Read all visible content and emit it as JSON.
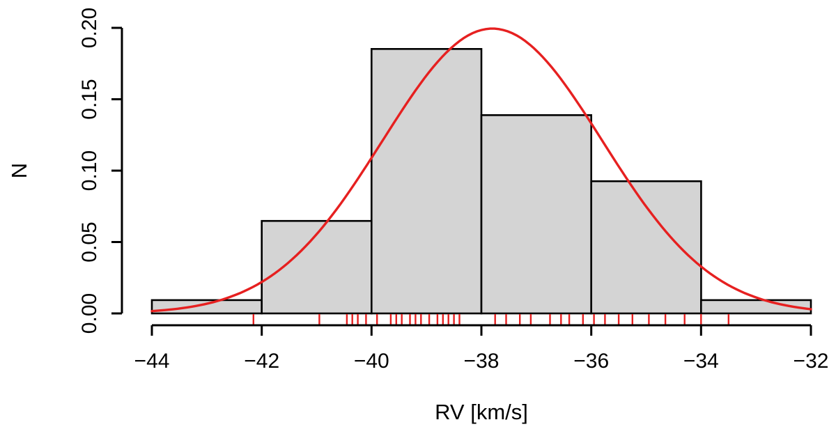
{
  "chart_data": {
    "type": "bar",
    "subtype": "histogram-with-density-curve-and-rug",
    "title": "",
    "xlabel": "RV [km/s]",
    "ylabel": "N",
    "xlim": [
      -44,
      -32
    ],
    "ylim": [
      0,
      0.2
    ],
    "grid": false,
    "legend": null,
    "x_ticks": [
      -44,
      -42,
      -40,
      -38,
      -36,
      -34,
      -32
    ],
    "x_tick_labels": [
      "−44",
      "−42",
      "−40",
      "−38",
      "−36",
      "−34",
      "−32"
    ],
    "y_ticks": [
      0,
      0.05,
      0.1,
      0.15,
      0.2
    ],
    "y_tick_labels": [
      "0.00",
      "0.05",
      "0.10",
      "0.15",
      "0.20"
    ],
    "bins": {
      "edges": [
        -44,
        -42,
        -40,
        -38,
        -36,
        -34,
        -32
      ],
      "densities": [
        0.0093,
        0.0648,
        0.1852,
        0.1389,
        0.0926,
        0.0093
      ]
    },
    "normal_curve": {
      "mean": -37.8,
      "sd": 2.0,
      "peak_density": 0.1995
    },
    "rug_values": [
      -42.15,
      -40.95,
      -40.45,
      -40.35,
      -40.25,
      -40.1,
      -39.9,
      -39.65,
      -39.55,
      -39.45,
      -39.3,
      -39.2,
      -39.1,
      -38.95,
      -38.8,
      -38.7,
      -38.6,
      -38.5,
      -38.4,
      -37.75,
      -37.55,
      -37.3,
      -37.1,
      -36.75,
      -36.55,
      -36.4,
      -36.15,
      -35.95,
      -35.75,
      -35.5,
      -35.25,
      -34.95,
      -34.65,
      -34.3,
      -34.0,
      -33.5
    ],
    "colors": {
      "bar_fill": "#d4d4d4",
      "bar_stroke": "#000000",
      "curve": "#e62020",
      "rug": "#e62020",
      "axis": "#000000",
      "background": "#ffffff"
    }
  }
}
